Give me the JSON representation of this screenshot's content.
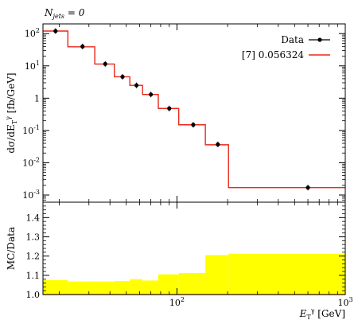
{
  "chart_data": [
    {
      "type": "line",
      "header": "N_jets = 0",
      "xlabel": "E_T^γ [GeV]",
      "ylabel": "dσ/dE_T^γ [fb/GeV]",
      "xscale": "log",
      "yscale": "log",
      "xlim": [
        16,
        1000
      ],
      "ylim": [
        0.0006,
        200
      ],
      "legend_position": "top-right",
      "x_tick_labels": [
        "10^2",
        "10^3"
      ],
      "y_tick_labels": [
        "10^2",
        "10^1",
        "1",
        "10^-1",
        "10^-2",
        "10^-3"
      ],
      "data_series": {
        "name": "Data",
        "color": "#000000",
        "points": [
          {
            "x": 19,
            "y": 120
          },
          {
            "x": 27.5,
            "y": 40
          },
          {
            "x": 37.5,
            "y": 11.5
          },
          {
            "x": 47.5,
            "y": 4.6
          },
          {
            "x": 57.5,
            "y": 2.5
          },
          {
            "x": 70,
            "y": 1.3
          },
          {
            "x": 90,
            "y": 0.48
          },
          {
            "x": 125,
            "y": 0.15
          },
          {
            "x": 175,
            "y": 0.037
          },
          {
            "x": 600,
            "y": 0.0017
          }
        ]
      },
      "mc_series": {
        "name": "[7] 0.056324",
        "color": "#e8291c",
        "bin_edges": [
          16,
          22.5,
          32.5,
          42.5,
          52.5,
          62.5,
          77.5,
          102.5,
          147.5,
          202.5,
          1000
        ],
        "values": [
          120,
          39,
          11.4,
          4.6,
          2.5,
          1.3,
          0.48,
          0.15,
          0.036,
          0.0017
        ]
      }
    },
    {
      "type": "area",
      "ylabel": "MC/Data",
      "xscale": "log",
      "xlim": [
        16,
        1000
      ],
      "ylim": [
        1.0,
        1.48
      ],
      "x_tick_labels": [
        "10^2",
        "10^3"
      ],
      "y_tick_labels": [
        "1.0",
        "1.1",
        "1.2",
        "1.3",
        "1.4"
      ],
      "band_color": "#ffff00",
      "bin_edges": [
        16,
        22.5,
        32.5,
        42.5,
        52.5,
        62.5,
        77.5,
        102.5,
        147.5,
        202.5,
        1000
      ],
      "band_upper": [
        1.075,
        1.068,
        1.068,
        1.07,
        1.08,
        1.073,
        1.105,
        1.112,
        1.205,
        1.212
      ],
      "band_lower": [
        1.0,
        1.0,
        1.0,
        1.0,
        1.0,
        1.0,
        1.0,
        1.0,
        1.0,
        1.0
      ],
      "ratio_series": {
        "color": "#e8291c",
        "values": [
          1.0,
          1.0,
          1.0,
          1.0,
          1.0,
          1.0,
          1.0,
          1.0,
          1.0,
          1.0
        ]
      }
    }
  ]
}
